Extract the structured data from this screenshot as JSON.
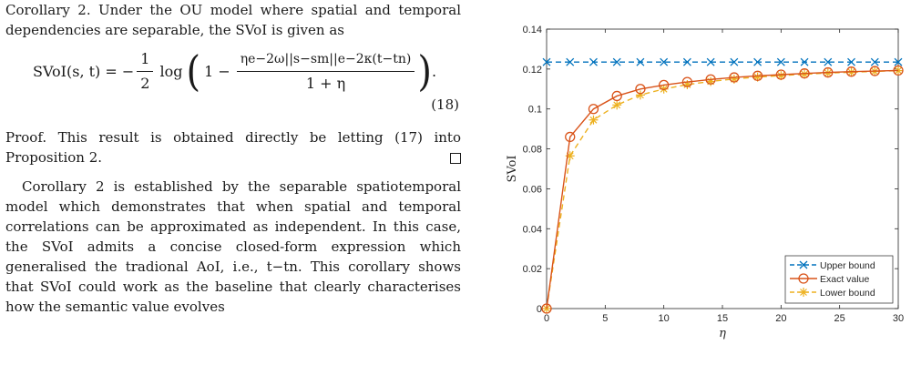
{
  "text": {
    "corollary": "Corollary 2. Under the OU model where spatial and temporal dependencies are separable, the SVoI is given as",
    "eq_lhs": "SVoI(s, t) = −",
    "eq_half_num": "1",
    "eq_half_den": "2",
    "eq_log": "log",
    "eq_one_minus": "1 −",
    "eq_frac_num": "ηe−2ω||s−sm||e−2κ(t−tn)",
    "eq_frac_den": "1 + η",
    "eq_number": "(18)",
    "proof": "Proof. This result is obtained directly be letting (17) into Proposition 2.",
    "paragraph": "Corollary 2 is established by the separable spatiotemporal model which demonstrates that when spatial and temporal correlations can be approximated as independent. In this case, the SVoI admits a concise closed-form expression which generalised the tradional AoI, i.e., t−tn. This corollary shows that SVoI could work as the baseline that clearly characterises how the semantic value evolves"
  },
  "chart_data": {
    "type": "line",
    "xlabel": "η",
    "ylabel": "SVoI",
    "xlim": [
      0,
      30
    ],
    "ylim": [
      0,
      0.14
    ],
    "xticks": [
      0,
      5,
      10,
      15,
      20,
      25,
      30
    ],
    "yticks": [
      0,
      0.02,
      0.04,
      0.06,
      0.08,
      0.1,
      0.12,
      0.14
    ],
    "ytick_labels": [
      "0",
      "0.02",
      "0.04",
      "0.06",
      "0.08",
      "0.1",
      "0.12",
      "0.14"
    ],
    "grid": false,
    "legend_position": "bottom-right",
    "x": [
      0,
      2,
      4,
      6,
      8,
      10,
      12,
      14,
      16,
      18,
      20,
      22,
      24,
      26,
      28,
      30
    ],
    "series": [
      {
        "name": "Upper bound",
        "color": "#0072BD",
        "style": "dashed",
        "marker": "x",
        "values": [
          0.1235,
          0.1235,
          0.1235,
          0.1235,
          0.1235,
          0.1235,
          0.1235,
          0.1235,
          0.1235,
          0.1235,
          0.1235,
          0.1235,
          0.1235,
          0.1235,
          0.1235,
          0.1235
        ]
      },
      {
        "name": "Exact value",
        "color": "#D95319",
        "style": "solid",
        "marker": "o",
        "values": [
          0,
          0.086,
          0.1,
          0.1065,
          0.11,
          0.112,
          0.1135,
          0.1148,
          0.1158,
          0.1166,
          0.1172,
          0.1178,
          0.1183,
          0.1187,
          0.119,
          0.1193
        ]
      },
      {
        "name": "Lower bound",
        "color": "#EDB120",
        "style": "dashed",
        "marker": "*",
        "values": [
          0,
          0.0765,
          0.0945,
          0.102,
          0.107,
          0.11,
          0.1122,
          0.1138,
          0.115,
          0.116,
          0.1167,
          0.1174,
          0.118,
          0.1184,
          0.1188,
          0.1192
        ]
      }
    ]
  }
}
